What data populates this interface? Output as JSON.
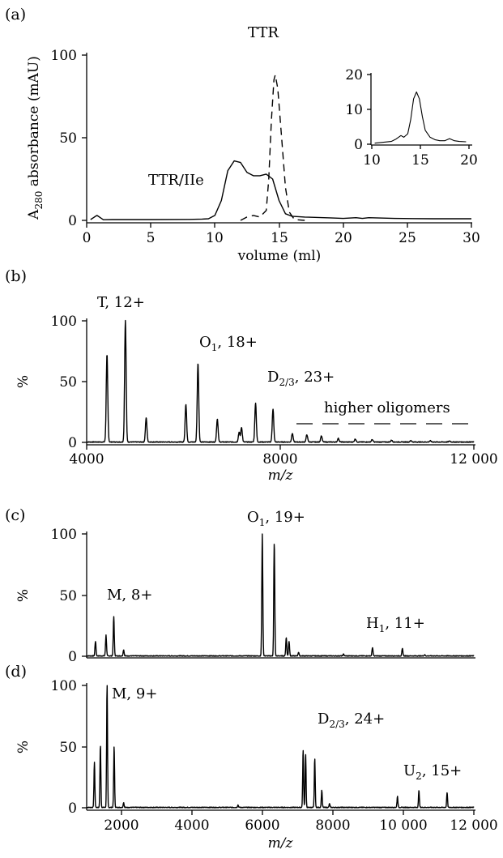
{
  "chart_data": [
    {
      "panel": "(a)",
      "type": "line",
      "xlabel": "volume (ml)",
      "ylabel": "A280 absorbance (mAU)",
      "xlim": [
        0,
        30
      ],
      "ylim": [
        0,
        100
      ],
      "xticks": [
        0,
        5,
        10,
        15,
        20,
        25,
        30
      ],
      "yticks": [
        0,
        50,
        100
      ],
      "annotations": [
        "TTR/IIe",
        "TTR"
      ],
      "series": [
        {
          "name": "TTR/IIe",
          "style": "solid",
          "points": [
            [
              0.3,
              0.5
            ],
            [
              0.6,
              2
            ],
            [
              0.8,
              3
            ],
            [
              1,
              2
            ],
            [
              1.3,
              0.4
            ],
            [
              2,
              0.5
            ],
            [
              5,
              0.5
            ],
            [
              8,
              0.6
            ],
            [
              9,
              0.8
            ],
            [
              9.5,
              1
            ],
            [
              10,
              3
            ],
            [
              10.5,
              12
            ],
            [
              11,
              30
            ],
            [
              11.5,
              36
            ],
            [
              12,
              35
            ],
            [
              12.5,
              29
            ],
            [
              13,
              27
            ],
            [
              13.5,
              27
            ],
            [
              14,
              28
            ],
            [
              14.5,
              25
            ],
            [
              15,
              12
            ],
            [
              15.5,
              4
            ],
            [
              16,
              2.5
            ],
            [
              17,
              2
            ],
            [
              19,
              1.5
            ],
            [
              20,
              1.2
            ],
            [
              21,
              1.6
            ],
            [
              21.5,
              1.2
            ],
            [
              22,
              1.6
            ],
            [
              24,
              1.2
            ],
            [
              27,
              1
            ],
            [
              30,
              1
            ]
          ]
        },
        {
          "name": "TTR",
          "style": "dashed",
          "points": [
            [
              12,
              0
            ],
            [
              12.5,
              2
            ],
            [
              13,
              3
            ],
            [
              13.5,
              2
            ],
            [
              14,
              6
            ],
            [
              14.2,
              25
            ],
            [
              14.4,
              60
            ],
            [
              14.6,
              85
            ],
            [
              14.7,
              88
            ],
            [
              14.9,
              80
            ],
            [
              15.2,
              50
            ],
            [
              15.5,
              20
            ],
            [
              15.8,
              5
            ],
            [
              16.2,
              0.5
            ],
            [
              17,
              0
            ]
          ]
        }
      ],
      "inset": {
        "xlim": [
          10,
          20
        ],
        "ylim": [
          0,
          20
        ],
        "xticks": [
          10,
          15,
          20
        ],
        "yticks": [
          0,
          10,
          20
        ],
        "points": [
          [
            10.3,
            0.3
          ],
          [
            11,
            0.5
          ],
          [
            12,
            0.8
          ],
          [
            12.5,
            1.5
          ],
          [
            13,
            2.5
          ],
          [
            13.3,
            2
          ],
          [
            13.7,
            3
          ],
          [
            14,
            7
          ],
          [
            14.3,
            13
          ],
          [
            14.6,
            15
          ],
          [
            14.9,
            13
          ],
          [
            15.2,
            8
          ],
          [
            15.5,
            4
          ],
          [
            16,
            2
          ],
          [
            16.5,
            1.3
          ],
          [
            17,
            1
          ],
          [
            17.5,
            1
          ],
          [
            18,
            1.6
          ],
          [
            18.5,
            1
          ],
          [
            19,
            0.8
          ],
          [
            19.7,
            0.7
          ]
        ]
      }
    },
    {
      "panel": "(b)",
      "type": "line",
      "xlabel": "m/z",
      "ylabel": "%",
      "xlim": [
        4000,
        12000
      ],
      "ylim": [
        0,
        100
      ],
      "xticks": [
        4000,
        8000,
        12000
      ],
      "xtick_labels": [
        "4000",
        "8000",
        "12 000"
      ],
      "yticks": [
        0,
        50,
        100
      ],
      "annotations": [
        "T, 12+",
        "O1, 18+",
        "D2/3, 23+",
        "higher oligomers"
      ],
      "peaks": [
        [
          4420,
          72
        ],
        [
          4800,
          100
        ],
        [
          5230,
          20
        ],
        [
          6050,
          31
        ],
        [
          6300,
          65
        ],
        [
          6700,
          19
        ],
        [
          7150,
          8
        ],
        [
          7200,
          12
        ],
        [
          7490,
          32
        ],
        [
          7850,
          27
        ],
        [
          8250,
          7
        ],
        [
          8550,
          6
        ],
        [
          8850,
          5
        ],
        [
          9200,
          3
        ],
        [
          9550,
          2.5
        ],
        [
          9900,
          2
        ],
        [
          10300,
          1.5
        ],
        [
          10700,
          1.2
        ],
        [
          11100,
          1
        ],
        [
          11500,
          0.8
        ]
      ]
    },
    {
      "panel": "(c)",
      "type": "line",
      "ylabel": "%",
      "xlim": [
        1000,
        12000
      ],
      "ylim": [
        0,
        100
      ],
      "yticks": [
        0,
        50,
        100
      ],
      "annotations": [
        "M, 8+",
        "O1, 19+",
        "H1, 11+"
      ],
      "peaks": [
        [
          1250,
          12
        ],
        [
          1550,
          17
        ],
        [
          1770,
          32
        ],
        [
          2050,
          5
        ],
        [
          5990,
          100
        ],
        [
          6330,
          93
        ],
        [
          6670,
          15
        ],
        [
          6750,
          12
        ],
        [
          7020,
          3
        ],
        [
          8300,
          1.5
        ],
        [
          9120,
          7
        ],
        [
          9970,
          6
        ],
        [
          10600,
          1
        ]
      ]
    },
    {
      "panel": "(d)",
      "type": "line",
      "xlabel": "m/z",
      "ylabel": "%",
      "xlim": [
        1000,
        12000
      ],
      "ylim": [
        0,
        100
      ],
      "xticks": [
        2000,
        4000,
        6000,
        8000,
        10000,
        12000
      ],
      "xtick_labels": [
        "2000",
        "4000",
        "6000",
        "8000",
        "10 000",
        "12 000"
      ],
      "yticks": [
        0,
        50,
        100
      ],
      "annotations": [
        "M, 9+",
        "D2/3, 24+",
        "U2, 15+"
      ],
      "peaks": [
        [
          1220,
          37
        ],
        [
          1390,
          51
        ],
        [
          1580,
          100
        ],
        [
          1780,
          50
        ],
        [
          2050,
          4
        ],
        [
          5300,
          2
        ],
        [
          7150,
          47
        ],
        [
          7220,
          44
        ],
        [
          7480,
          40
        ],
        [
          7680,
          14
        ],
        [
          7900,
          3
        ],
        [
          9830,
          9
        ],
        [
          10440,
          14
        ],
        [
          11240,
          12
        ]
      ]
    }
  ]
}
